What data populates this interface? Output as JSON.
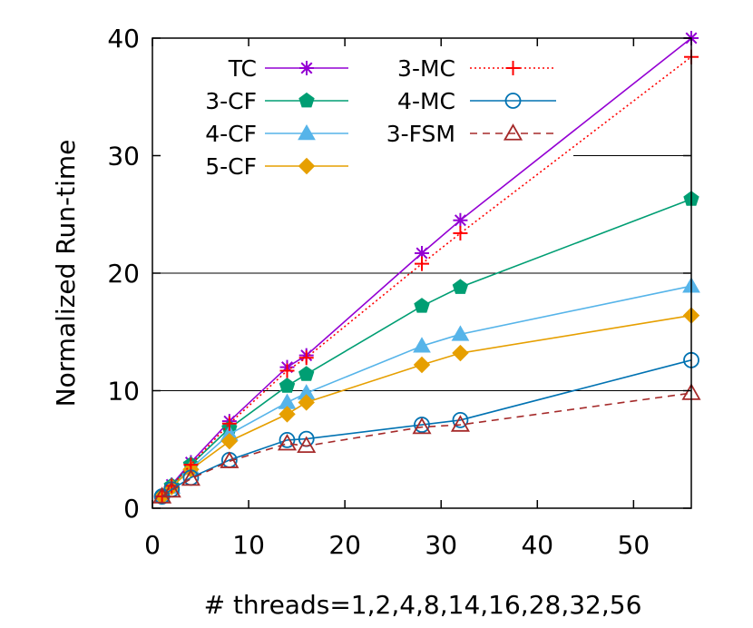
{
  "chart_data": {
    "type": "line",
    "title": "",
    "xlabel": "# threads=1,2,4,8,14,16,28,32,56",
    "ylabel": "Normalized Run-time",
    "xlim": [
      0,
      56
    ],
    "ylim": [
      0,
      40
    ],
    "xticks": [
      0,
      10,
      20,
      30,
      40,
      50
    ],
    "yticks": [
      0,
      10,
      20,
      30,
      40
    ],
    "x": [
      1,
      2,
      4,
      8,
      14,
      16,
      28,
      32,
      56
    ],
    "grid": "horizontal",
    "legend_position": "top-left",
    "series": [
      {
        "name": "TC",
        "color": "#9400d3",
        "marker": "star",
        "dash": "solid",
        "legend_col": 0,
        "values": [
          1,
          2,
          3.9,
          7.4,
          12,
          13,
          21.7,
          24.5,
          40
        ]
      },
      {
        "name": "3-CF",
        "color": "#009e73",
        "marker": "pentagon",
        "dash": "solid",
        "legend_col": 0,
        "values": [
          1,
          1.9,
          3.7,
          6.8,
          10.4,
          11.4,
          17.2,
          18.8,
          26.3
        ]
      },
      {
        "name": "4-CF",
        "color": "#56b4e9",
        "marker": "triangle",
        "dash": "solid",
        "legend_col": 0,
        "values": [
          1,
          1.8,
          3.4,
          6.3,
          9,
          9.8,
          13.8,
          14.8,
          18.9
        ]
      },
      {
        "name": "5-CF",
        "color": "#e69f00",
        "marker": "diamond",
        "dash": "solid",
        "legend_col": 0,
        "values": [
          1,
          1.8,
          3.3,
          5.7,
          8,
          9,
          12.2,
          13.2,
          16.4
        ]
      },
      {
        "name": "3-MC",
        "color": "#ff0000",
        "marker": "plus",
        "dash": "dotted",
        "legend_col": 1,
        "values": [
          1,
          1.9,
          3.7,
          7.2,
          11.7,
          12.8,
          20.8,
          23.4,
          38.4
        ]
      },
      {
        "name": "4-MC",
        "color": "#0072b2",
        "marker": "circle",
        "dash": "solid",
        "legend_col": 1,
        "values": [
          1,
          1.6,
          2.6,
          4.1,
          5.8,
          5.9,
          7.1,
          7.5,
          12.6
        ]
      },
      {
        "name": "3-FSM",
        "color": "#a52a2a",
        "marker": "triangle-open",
        "dash": "dashed",
        "legend_col": 1,
        "values": [
          1,
          1.5,
          2.5,
          4,
          5.5,
          5.3,
          6.9,
          7.1,
          9.8
        ]
      }
    ]
  }
}
